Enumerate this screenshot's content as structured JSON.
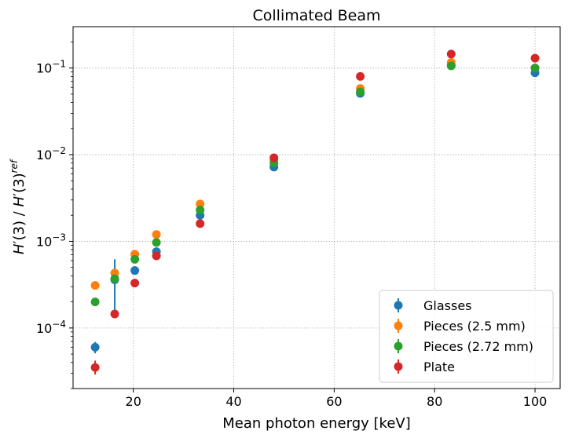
{
  "chart_data": {
    "type": "scatter",
    "title": "Collimated Beam",
    "xlabel": "Mean photon energy [keV]",
    "ylabel_parts": {
      "h1": "H",
      "p1": "′",
      "a1": "(3) / ",
      "h2": "H",
      "p2": "′",
      "a2": "(3)",
      "sup": "ref"
    },
    "xlim": [
      8,
      105
    ],
    "ylim": [
      2e-05,
      0.3
    ],
    "yscale": "log",
    "grid": true,
    "x_ticks": [
      {
        "value": 20,
        "label": "20"
      },
      {
        "value": 40,
        "label": "40"
      },
      {
        "value": 60,
        "label": "60"
      },
      {
        "value": 80,
        "label": "80"
      },
      {
        "value": 100,
        "label": "100"
      }
    ],
    "y_ticks": [
      {
        "exp": -4,
        "base": "10",
        "label": "−4"
      },
      {
        "exp": -3,
        "base": "10",
        "label": "−3"
      },
      {
        "exp": -2,
        "base": "10",
        "label": "−2"
      },
      {
        "exp": -1,
        "base": "10",
        "label": "−1"
      }
    ],
    "legend_position": "lower-right",
    "series": [
      {
        "name": "Glasses",
        "color": "#1f77b4",
        "points": [
          {
            "x": 12.4,
            "y": 6e-05,
            "lo": 5.1e-05,
            "hi": 6.9e-05
          },
          {
            "x": 16.3,
            "y": 0.00036,
            "lo": 0.000145,
            "hi": 0.00062
          },
          {
            "x": 20.3,
            "y": 0.00046
          },
          {
            "x": 24.6,
            "y": 0.00076
          },
          {
            "x": 33.3,
            "y": 0.002
          },
          {
            "x": 48,
            "y": 0.0072
          },
          {
            "x": 65.2,
            "y": 0.051
          },
          {
            "x": 83.3,
            "y": 0.107
          },
          {
            "x": 100,
            "y": 0.088
          }
        ]
      },
      {
        "name": "Pieces (2.5 mm)",
        "color": "#ff7f0e",
        "points": [
          {
            "x": 12.4,
            "y": 0.00031
          },
          {
            "x": 16.3,
            "y": 0.00043
          },
          {
            "x": 20.3,
            "y": 0.00071
          },
          {
            "x": 24.6,
            "y": 0.0012
          },
          {
            "x": 33.3,
            "y": 0.0027
          },
          {
            "x": 48,
            "y": 0.0087
          },
          {
            "x": 65.2,
            "y": 0.058
          },
          {
            "x": 83.3,
            "y": 0.116
          },
          {
            "x": 100,
            "y": 0.1
          }
        ]
      },
      {
        "name": "Pieces (2.72 mm)",
        "color": "#2ca02c",
        "points": [
          {
            "x": 12.4,
            "y": 0.0002
          },
          {
            "x": 16.3,
            "y": 0.00037
          },
          {
            "x": 20.3,
            "y": 0.00062
          },
          {
            "x": 24.6,
            "y": 0.00097
          },
          {
            "x": 33.3,
            "y": 0.0023
          },
          {
            "x": 48,
            "y": 0.008
          },
          {
            "x": 65.2,
            "y": 0.053
          },
          {
            "x": 83.3,
            "y": 0.106
          },
          {
            "x": 100,
            "y": 0.1
          }
        ]
      },
      {
        "name": "Plate",
        "color": "#d62728",
        "points": [
          {
            "x": 12.4,
            "y": 3.5e-05,
            "lo": 2.9e-05,
            "hi": 4.2e-05
          },
          {
            "x": 16.3,
            "y": 0.000145
          },
          {
            "x": 20.3,
            "y": 0.00033
          },
          {
            "x": 24.6,
            "y": 0.00068
          },
          {
            "x": 33.3,
            "y": 0.0016
          },
          {
            "x": 48,
            "y": 0.0092
          },
          {
            "x": 65.2,
            "y": 0.08
          },
          {
            "x": 83.3,
            "y": 0.145
          },
          {
            "x": 100,
            "y": 0.13
          }
        ]
      }
    ]
  }
}
